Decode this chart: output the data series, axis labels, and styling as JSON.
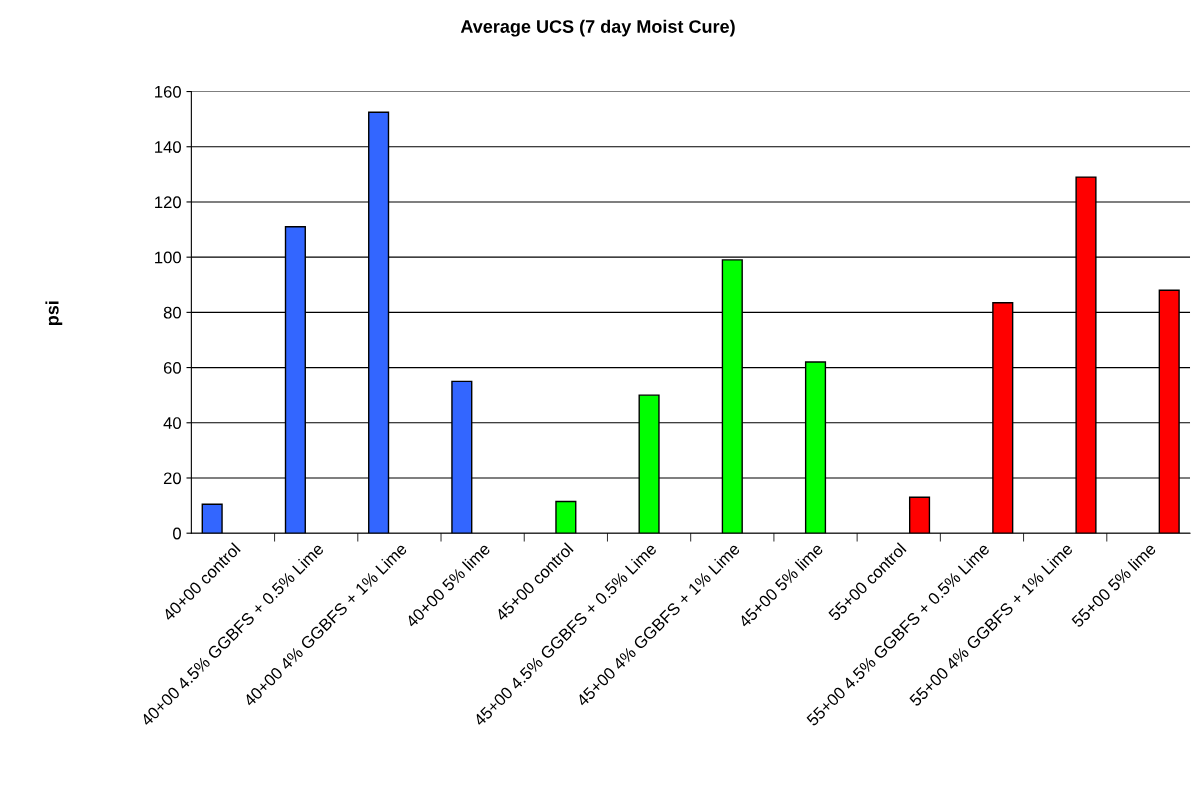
{
  "chart_data": {
    "type": "bar",
    "title": "Average UCS (7 day Moist Cure)",
    "ylabel": "psi",
    "categories": [
      "40+00 control",
      "40+00 4.5% GGBFS + 0.5% Lime",
      "40+00 4% GGBFS + 1% Lime",
      "40+00 5% lime",
      "45+00 control",
      "45+00 4.5% GGBFS + 0.5% Lime",
      "45+00 4% GGBFS + 1% Lime",
      "45+00 5% lime",
      "55+00 control",
      "55+00 4.5% GGBFS + 0.5% Lime",
      "55+00 4% GGBFS + 1% Lime",
      "55+00 5% lime"
    ],
    "series": [
      {
        "color": "#3366ff",
        "values": [
          10.5,
          111,
          152.5,
          55,
          null,
          null,
          null,
          null,
          null,
          null,
          null,
          null
        ]
      },
      {
        "color": "#00ff00",
        "values": [
          null,
          null,
          null,
          null,
          11.5,
          50,
          99,
          62,
          null,
          null,
          null,
          null
        ]
      },
      {
        "color": "#ff0000",
        "values": [
          null,
          null,
          null,
          null,
          null,
          null,
          null,
          null,
          13,
          83.5,
          129,
          88
        ]
      }
    ],
    "ylim": [
      0,
      160
    ],
    "yticks": [
      0,
      20,
      40,
      60,
      80,
      100,
      120,
      140,
      160
    ],
    "grid": "y",
    "legend": false
  }
}
